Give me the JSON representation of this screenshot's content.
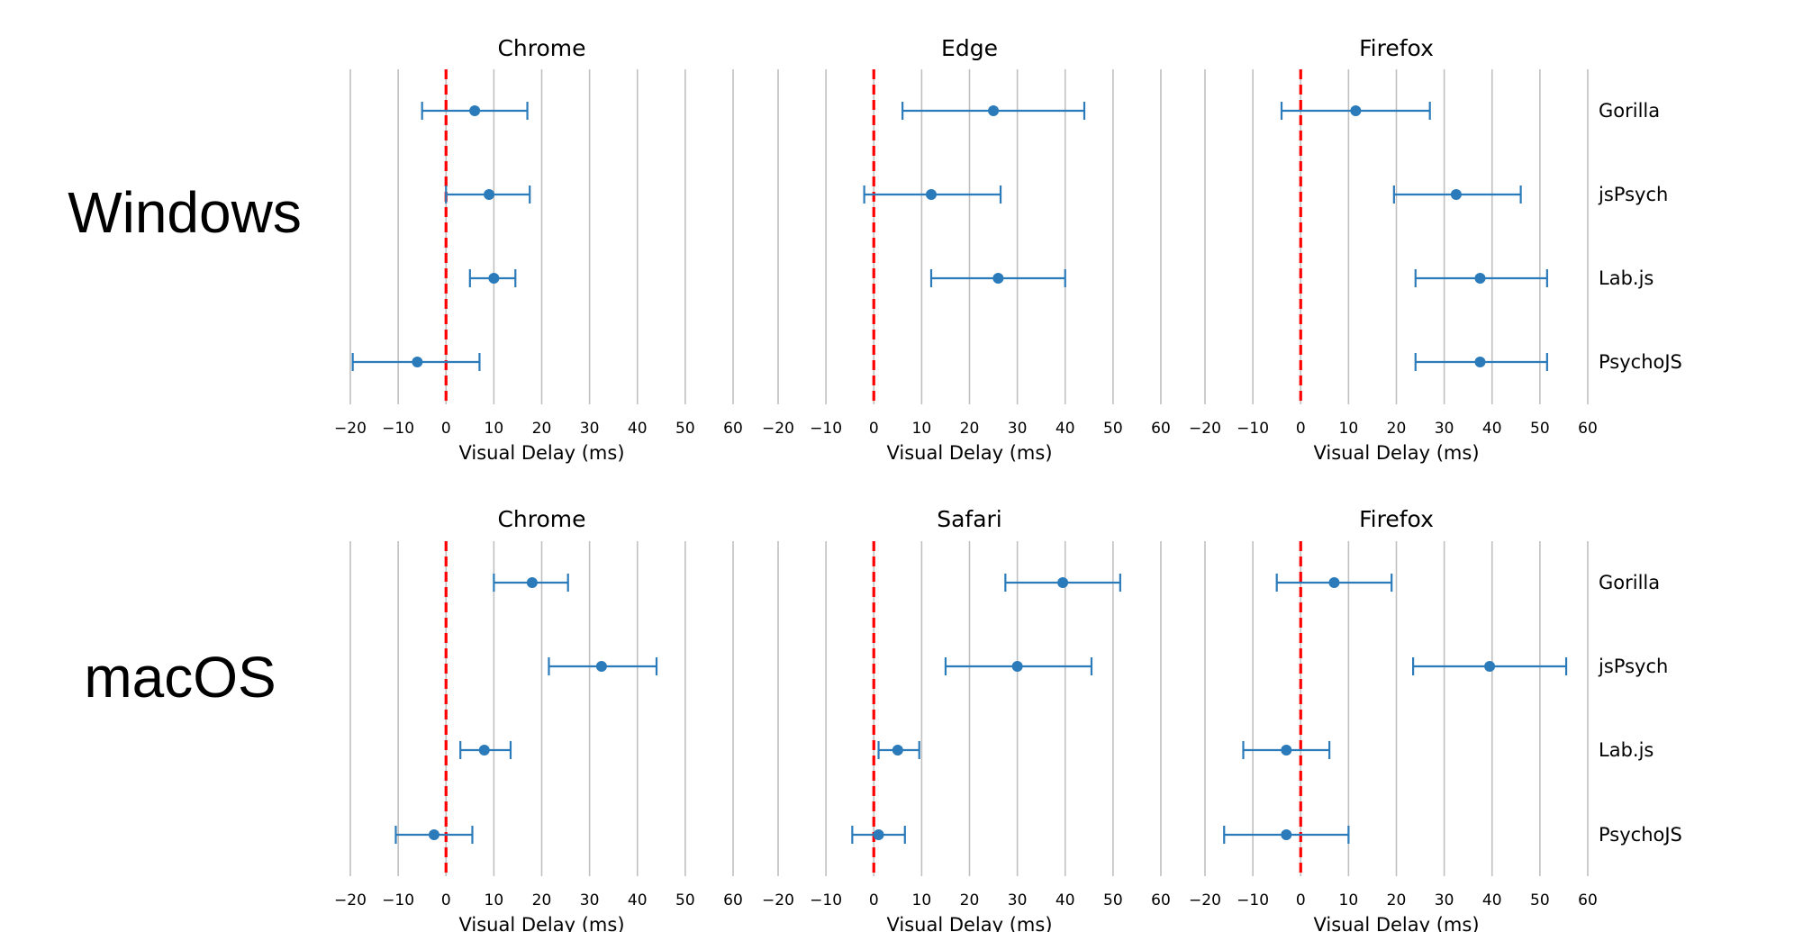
{
  "chart_data": {
    "type": "errorbar",
    "x_label": "Visual Delay (ms)",
    "xlim": [
      -20,
      60
    ],
    "x_ticks": [
      -20,
      -10,
      0,
      10,
      20,
      30,
      40,
      50,
      60
    ],
    "x_tick_labels": [
      "−20",
      "−10",
      "0",
      "10",
      "20",
      "30",
      "40",
      "50",
      "60"
    ],
    "categories": [
      "Gorilla",
      "jsPsych",
      "Lab.js",
      "PsychoJS"
    ],
    "reference_line": {
      "x": 0,
      "style": "dashed",
      "color": "#ff0000"
    },
    "grid": "vertical",
    "colors": {
      "series": "#2b7bba",
      "reference": "#ff0000",
      "grid": "#c0c0c0"
    },
    "rows": [
      {
        "label": "Windows",
        "panels": [
          {
            "title": "Chrome",
            "points": [
              {
                "category": "Gorilla",
                "mean": 6,
                "lower": -5,
                "upper": 17
              },
              {
                "category": "jsPsych",
                "mean": 9,
                "lower": 0,
                "upper": 17.5
              },
              {
                "category": "Lab.js",
                "mean": 10,
                "lower": 5,
                "upper": 14.5
              },
              {
                "category": "PsychoJS",
                "mean": -6,
                "lower": -19.5,
                "upper": 7
              }
            ]
          },
          {
            "title": "Edge",
            "points": [
              {
                "category": "Gorilla",
                "mean": 25,
                "lower": 6,
                "upper": 44
              },
              {
                "category": "jsPsych",
                "mean": 12,
                "lower": -2,
                "upper": 26.5
              },
              {
                "category": "Lab.js",
                "mean": 26,
                "lower": 12,
                "upper": 40
              }
            ]
          },
          {
            "title": "Firefox",
            "points": [
              {
                "category": "Gorilla",
                "mean": 11.5,
                "lower": -4,
                "upper": 27
              },
              {
                "category": "jsPsych",
                "mean": 32.5,
                "lower": 19.5,
                "upper": 46
              },
              {
                "category": "Lab.js",
                "mean": 37.5,
                "lower": 24,
                "upper": 51.5
              },
              {
                "category": "PsychoJS",
                "mean": 37.5,
                "lower": 24,
                "upper": 51.5
              }
            ]
          }
        ]
      },
      {
        "label": "macOS",
        "panels": [
          {
            "title": "Chrome",
            "points": [
              {
                "category": "Gorilla",
                "mean": 18,
                "lower": 10,
                "upper": 25.5
              },
              {
                "category": "jsPsych",
                "mean": 32.5,
                "lower": 21.5,
                "upper": 44
              },
              {
                "category": "Lab.js",
                "mean": 8,
                "lower": 3,
                "upper": 13.5
              },
              {
                "category": "PsychoJS",
                "mean": -2.5,
                "lower": -10.5,
                "upper": 5.5
              }
            ]
          },
          {
            "title": "Safari",
            "points": [
              {
                "category": "Gorilla",
                "mean": 39.5,
                "lower": 27.5,
                "upper": 51.5
              },
              {
                "category": "jsPsych",
                "mean": 30,
                "lower": 15,
                "upper": 45.5
              },
              {
                "category": "Lab.js",
                "mean": 5,
                "lower": 1,
                "upper": 9.5
              },
              {
                "category": "PsychoJS",
                "mean": 1,
                "lower": -4.5,
                "upper": 6.5
              }
            ]
          },
          {
            "title": "Firefox",
            "points": [
              {
                "category": "Gorilla",
                "mean": 7,
                "lower": -5,
                "upper": 19
              },
              {
                "category": "jsPsych",
                "mean": 39.5,
                "lower": 23.5,
                "upper": 55.5
              },
              {
                "category": "Lab.js",
                "mean": -3,
                "lower": -12,
                "upper": 6
              },
              {
                "category": "PsychoJS",
                "mean": -3,
                "lower": -16,
                "upper": 10
              }
            ]
          }
        ]
      }
    ]
  }
}
